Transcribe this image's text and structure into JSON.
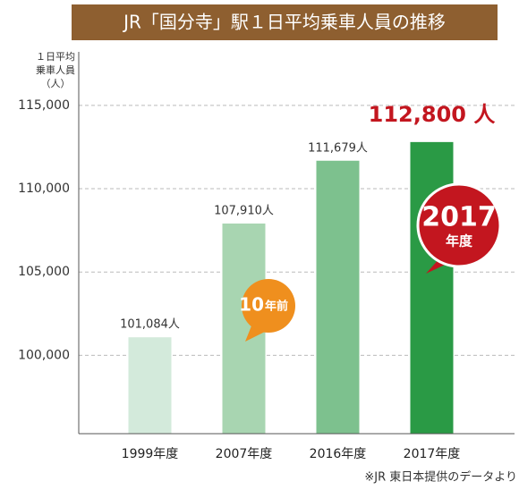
{
  "chart_data": {
    "type": "bar",
    "title": "JR「国分寺」駅１日平均乗車人員の推移",
    "y_label_lines": [
      "１日平均",
      "乗車人員",
      "（人）"
    ],
    "categories": [
      "1999年度",
      "2007年度",
      "2016年度",
      "2017年度"
    ],
    "values": [
      101084,
      107910,
      111679,
      112800
    ],
    "value_labels": [
      "101,084人",
      "107,910人",
      "111,679人",
      "112,800 人"
    ],
    "colors": [
      "#d3eadb",
      "#a8d5b1",
      "#7dc18e",
      "#2a9a45"
    ],
    "ylim": [
      95300,
      117300
    ],
    "yticks": [
      {
        "value": 100000,
        "label": "100,000"
      },
      {
        "value": 105000,
        "label": "105,000"
      },
      {
        "value": 110000,
        "label": "110,000"
      },
      {
        "value": 115000,
        "label": "115,000"
      }
    ],
    "grid": true,
    "callouts": [
      {
        "big": "10",
        "small": "年前",
        "color": "#ef8f1e"
      },
      {
        "big": "2017",
        "small": "年度",
        "color": "#c3161f"
      }
    ],
    "source": "※JR 東日本提供のデータより"
  }
}
